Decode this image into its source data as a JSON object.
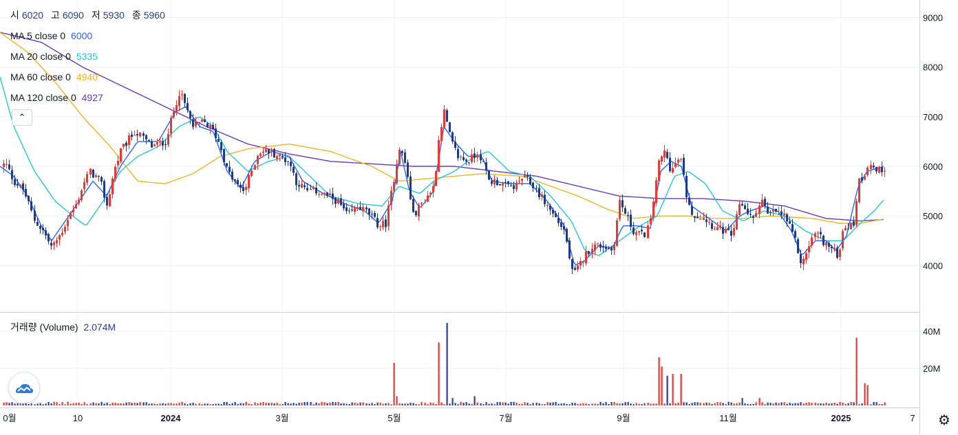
{
  "chart_data": {
    "type": "candlestick",
    "ohlc_legend": [
      {
        "label": "시",
        "value": "6020"
      },
      {
        "label": "고",
        "value": "6090"
      },
      {
        "label": "저",
        "value": "5930"
      },
      {
        "label": "종",
        "value": "5960"
      }
    ],
    "ma_legend": [
      {
        "label": "MA 5 close 0",
        "value": "6000",
        "color": "#2962ff"
      },
      {
        "label": "MA 20 close 0",
        "value": "5335",
        "color": "#26c6da"
      },
      {
        "label": "MA 60 close 0",
        "value": "4940",
        "color": "#f0b429"
      },
      {
        "label": "MA 120 close 0",
        "value": "4927",
        "color": "#673ab7"
      }
    ],
    "volume_legend": {
      "label": "거래량 (Volume)",
      "value": "2.074M"
    },
    "price_axis": {
      "ticks": [
        4000,
        5000,
        6000,
        7000,
        8000,
        9000
      ],
      "range": [
        3250,
        9300
      ]
    },
    "volume_axis": {
      "ticks": [
        "20M",
        "40M"
      ],
      "tick_values": [
        20,
        40
      ],
      "range": [
        0,
        48
      ]
    },
    "time_axis": {
      "labels": [
        "0월",
        "10",
        "2024",
        "3월",
        "5월",
        "7월",
        "9월",
        "11월",
        "2025",
        "7"
      ],
      "bold": [
        "2024",
        "2025"
      ]
    },
    "colors": {
      "up": "#e53935",
      "down": "#1e3a8a",
      "vol_up": "#e53935",
      "vol_down": "#2a3f9c",
      "grid": "#eef0f3"
    },
    "controlPoints": [
      [
        0,
        6000
      ],
      [
        8,
        6050
      ],
      [
        20,
        5700
      ],
      [
        35,
        5500
      ],
      [
        50,
        4900
      ],
      [
        62,
        4700
      ],
      [
        75,
        4350
      ],
      [
        90,
        4700
      ],
      [
        100,
        5000
      ],
      [
        110,
        5200
      ],
      [
        120,
        5600
      ],
      [
        130,
        5900
      ],
      [
        145,
        5700
      ],
      [
        155,
        5200
      ],
      [
        165,
        5900
      ],
      [
        175,
        6300
      ],
      [
        185,
        6500
      ],
      [
        195,
        6700
      ],
      [
        205,
        6600
      ],
      [
        220,
        6400
      ],
      [
        240,
        6500
      ],
      [
        250,
        7000
      ],
      [
        260,
        7500
      ],
      [
        270,
        7200
      ],
      [
        280,
        6800
      ],
      [
        295,
        6900
      ],
      [
        310,
        6700
      ],
      [
        320,
        6400
      ],
      [
        330,
        5900
      ],
      [
        345,
        5600
      ],
      [
        355,
        5500
      ],
      [
        365,
        5900
      ],
      [
        375,
        6300
      ],
      [
        390,
        6300
      ],
      [
        405,
        6200
      ],
      [
        420,
        6100
      ],
      [
        430,
        5700
      ],
      [
        445,
        5500
      ],
      [
        460,
        5500
      ],
      [
        475,
        5400
      ],
      [
        490,
        5300
      ],
      [
        505,
        5000
      ],
      [
        520,
        5200
      ],
      [
        535,
        5050
      ],
      [
        550,
        4800
      ],
      [
        560,
        4850
      ],
      [
        570,
        5600
      ],
      [
        580,
        6400
      ],
      [
        590,
        6000
      ],
      [
        600,
        5000
      ],
      [
        610,
        5200
      ],
      [
        620,
        5400
      ],
      [
        630,
        5600
      ],
      [
        638,
        6700
      ],
      [
        645,
        7100
      ],
      [
        655,
        6500
      ],
      [
        665,
        6200
      ],
      [
        680,
        6100
      ],
      [
        695,
        6300
      ],
      [
        710,
        5700
      ],
      [
        720,
        5700
      ],
      [
        735,
        5600
      ],
      [
        750,
        5600
      ],
      [
        760,
        5800
      ],
      [
        775,
        5600
      ],
      [
        790,
        5300
      ],
      [
        805,
        5000
      ],
      [
        820,
        4700
      ],
      [
        832,
        3800
      ],
      [
        840,
        3950
      ],
      [
        850,
        4200
      ],
      [
        860,
        4400
      ],
      [
        875,
        4400
      ],
      [
        890,
        4300
      ],
      [
        900,
        5300
      ],
      [
        910,
        5000
      ],
      [
        920,
        4700
      ],
      [
        935,
        4600
      ],
      [
        945,
        4900
      ],
      [
        955,
        6000
      ],
      [
        965,
        6300
      ],
      [
        975,
        5900
      ],
      [
        988,
        6200
      ],
      [
        1000,
        5200
      ],
      [
        1010,
        5000
      ],
      [
        1020,
        5000
      ],
      [
        1035,
        4800
      ],
      [
        1050,
        4700
      ],
      [
        1065,
        4600
      ],
      [
        1075,
        5300
      ],
      [
        1085,
        5100
      ],
      [
        1095,
        4900
      ],
      [
        1105,
        5400
      ],
      [
        1115,
        5000
      ],
      [
        1125,
        5100
      ],
      [
        1140,
        5000
      ],
      [
        1155,
        4500
      ],
      [
        1165,
        4000
      ],
      [
        1175,
        4400
      ],
      [
        1185,
        4700
      ],
      [
        1195,
        4500
      ],
      [
        1210,
        4300
      ],
      [
        1218,
        4200
      ],
      [
        1225,
        4800
      ],
      [
        1240,
        4800
      ],
      [
        1247,
        5700
      ],
      [
        1255,
        5800
      ],
      [
        1262,
        6100
      ],
      [
        1272,
        5900
      ],
      [
        1285,
        5960
      ]
    ],
    "volume_spikes": [
      [
        573,
        23
      ],
      [
        578,
        5
      ],
      [
        636,
        34
      ],
      [
        647,
        44.5
      ],
      [
        657,
        4
      ],
      [
        688,
        5
      ],
      [
        955,
        26
      ],
      [
        960,
        21
      ],
      [
        968,
        16
      ],
      [
        977,
        17
      ],
      [
        988,
        17
      ],
      [
        1077,
        4
      ],
      [
        1104,
        4
      ],
      [
        1245,
        36.5
      ],
      [
        1256,
        12
      ],
      [
        1262,
        11
      ]
    ],
    "ma_lines": {
      "ma120": [
        [
          0,
          8700
        ],
        [
          60,
          8500
        ],
        [
          120,
          8000
        ],
        [
          180,
          7600
        ],
        [
          240,
          7200
        ],
        [
          300,
          6800
        ],
        [
          360,
          6450
        ],
        [
          420,
          6250
        ],
        [
          480,
          6100
        ],
        [
          540,
          6050
        ],
        [
          600,
          6000
        ],
        [
          660,
          6000
        ],
        [
          720,
          5900
        ],
        [
          780,
          5800
        ],
        [
          840,
          5600
        ],
        [
          900,
          5400
        ],
        [
          960,
          5350
        ],
        [
          1020,
          5350
        ],
        [
          1080,
          5300
        ],
        [
          1140,
          5200
        ],
        [
          1200,
          4950
        ],
        [
          1250,
          4900
        ],
        [
          1285,
          4927
        ]
      ],
      "ma60": [
        [
          0,
          8700
        ],
        [
          40,
          8300
        ],
        [
          80,
          7700
        ],
        [
          120,
          7000
        ],
        [
          160,
          6400
        ],
        [
          200,
          5700
        ],
        [
          240,
          5650
        ],
        [
          280,
          5850
        ],
        [
          320,
          6200
        ],
        [
          360,
          6350
        ],
        [
          420,
          6450
        ],
        [
          480,
          6300
        ],
        [
          540,
          6000
        ],
        [
          580,
          5700
        ],
        [
          620,
          5750
        ],
        [
          660,
          5800
        ],
        [
          700,
          5850
        ],
        [
          760,
          5800
        ],
        [
          800,
          5600
        ],
        [
          840,
          5400
        ],
        [
          880,
          5150
        ],
        [
          920,
          4950
        ],
        [
          960,
          5000
        ],
        [
          1000,
          5000
        ],
        [
          1040,
          4950
        ],
        [
          1080,
          4950
        ],
        [
          1120,
          5000
        ],
        [
          1180,
          4950
        ],
        [
          1220,
          4850
        ],
        [
          1250,
          4850
        ],
        [
          1285,
          4940
        ]
      ],
      "ma20": [
        [
          0,
          7800
        ],
        [
          20,
          6800
        ],
        [
          50,
          5900
        ],
        [
          80,
          5300
        ],
        [
          110,
          4950
        ],
        [
          125,
          4800
        ],
        [
          150,
          5300
        ],
        [
          175,
          5900
        ],
        [
          200,
          6200
        ],
        [
          230,
          6400
        ],
        [
          260,
          6800
        ],
        [
          290,
          7000
        ],
        [
          310,
          6800
        ],
        [
          330,
          6300
        ],
        [
          360,
          5900
        ],
        [
          390,
          6100
        ],
        [
          420,
          6200
        ],
        [
          450,
          5800
        ],
        [
          480,
          5400
        ],
        [
          520,
          5250
        ],
        [
          555,
          5200
        ],
        [
          580,
          5600
        ],
        [
          610,
          5450
        ],
        [
          630,
          5700
        ],
        [
          660,
          5900
        ],
        [
          690,
          6200
        ],
        [
          710,
          6300
        ],
        [
          740,
          5900
        ],
        [
          770,
          5800
        ],
        [
          800,
          5400
        ],
        [
          830,
          4900
        ],
        [
          850,
          4300
        ],
        [
          870,
          4200
        ],
        [
          900,
          4500
        ],
        [
          930,
          4800
        ],
        [
          955,
          5000
        ],
        [
          980,
          5800
        ],
        [
          1000,
          5900
        ],
        [
          1025,
          5650
        ],
        [
          1050,
          5100
        ],
        [
          1080,
          4900
        ],
        [
          1110,
          5100
        ],
        [
          1140,
          5000
        ],
        [
          1170,
          4700
        ],
        [
          1200,
          4500
        ],
        [
          1225,
          4500
        ],
        [
          1250,
          4850
        ],
        [
          1270,
          5100
        ],
        [
          1285,
          5335
        ]
      ],
      "ma5": [
        [
          0,
          6000
        ],
        [
          20,
          5800
        ],
        [
          40,
          5400
        ],
        [
          60,
          4800
        ],
        [
          75,
          4500
        ],
        [
          95,
          4900
        ],
        [
          115,
          5300
        ],
        [
          135,
          5700
        ],
        [
          155,
          5400
        ],
        [
          175,
          6000
        ],
        [
          200,
          6500
        ],
        [
          230,
          6500
        ],
        [
          255,
          7100
        ],
        [
          270,
          7200
        ],
        [
          290,
          6800
        ],
        [
          310,
          6700
        ],
        [
          330,
          5900
        ],
        [
          350,
          5550
        ],
        [
          370,
          6100
        ],
        [
          395,
          6300
        ],
        [
          420,
          6200
        ],
        [
          440,
          5700
        ],
        [
          470,
          5450
        ],
        [
          500,
          5250
        ],
        [
          530,
          5100
        ],
        [
          550,
          4850
        ],
        [
          570,
          5300
        ],
        [
          582,
          6300
        ],
        [
          595,
          5500
        ],
        [
          610,
          5150
        ],
        [
          630,
          5500
        ],
        [
          645,
          6800
        ],
        [
          660,
          6500
        ],
        [
          680,
          6200
        ],
        [
          700,
          6200
        ],
        [
          715,
          5700
        ],
        [
          740,
          5650
        ],
        [
          770,
          5650
        ],
        [
          795,
          5300
        ],
        [
          820,
          4800
        ],
        [
          835,
          4000
        ],
        [
          850,
          4100
        ],
        [
          870,
          4400
        ],
        [
          890,
          4350
        ],
        [
          905,
          4800
        ],
        [
          925,
          4800
        ],
        [
          945,
          4750
        ],
        [
          960,
          5900
        ],
        [
          975,
          6100
        ],
        [
          990,
          6000
        ],
        [
          1005,
          5200
        ],
        [
          1030,
          4950
        ],
        [
          1055,
          4700
        ],
        [
          1075,
          5000
        ],
        [
          1090,
          5100
        ],
        [
          1110,
          5200
        ],
        [
          1130,
          5100
        ],
        [
          1150,
          4700
        ],
        [
          1165,
          4200
        ],
        [
          1185,
          4500
        ],
        [
          1200,
          4500
        ],
        [
          1215,
          4300
        ],
        [
          1230,
          4600
        ],
        [
          1247,
          5600
        ],
        [
          1260,
          5900
        ],
        [
          1285,
          6000
        ]
      ]
    }
  }
}
